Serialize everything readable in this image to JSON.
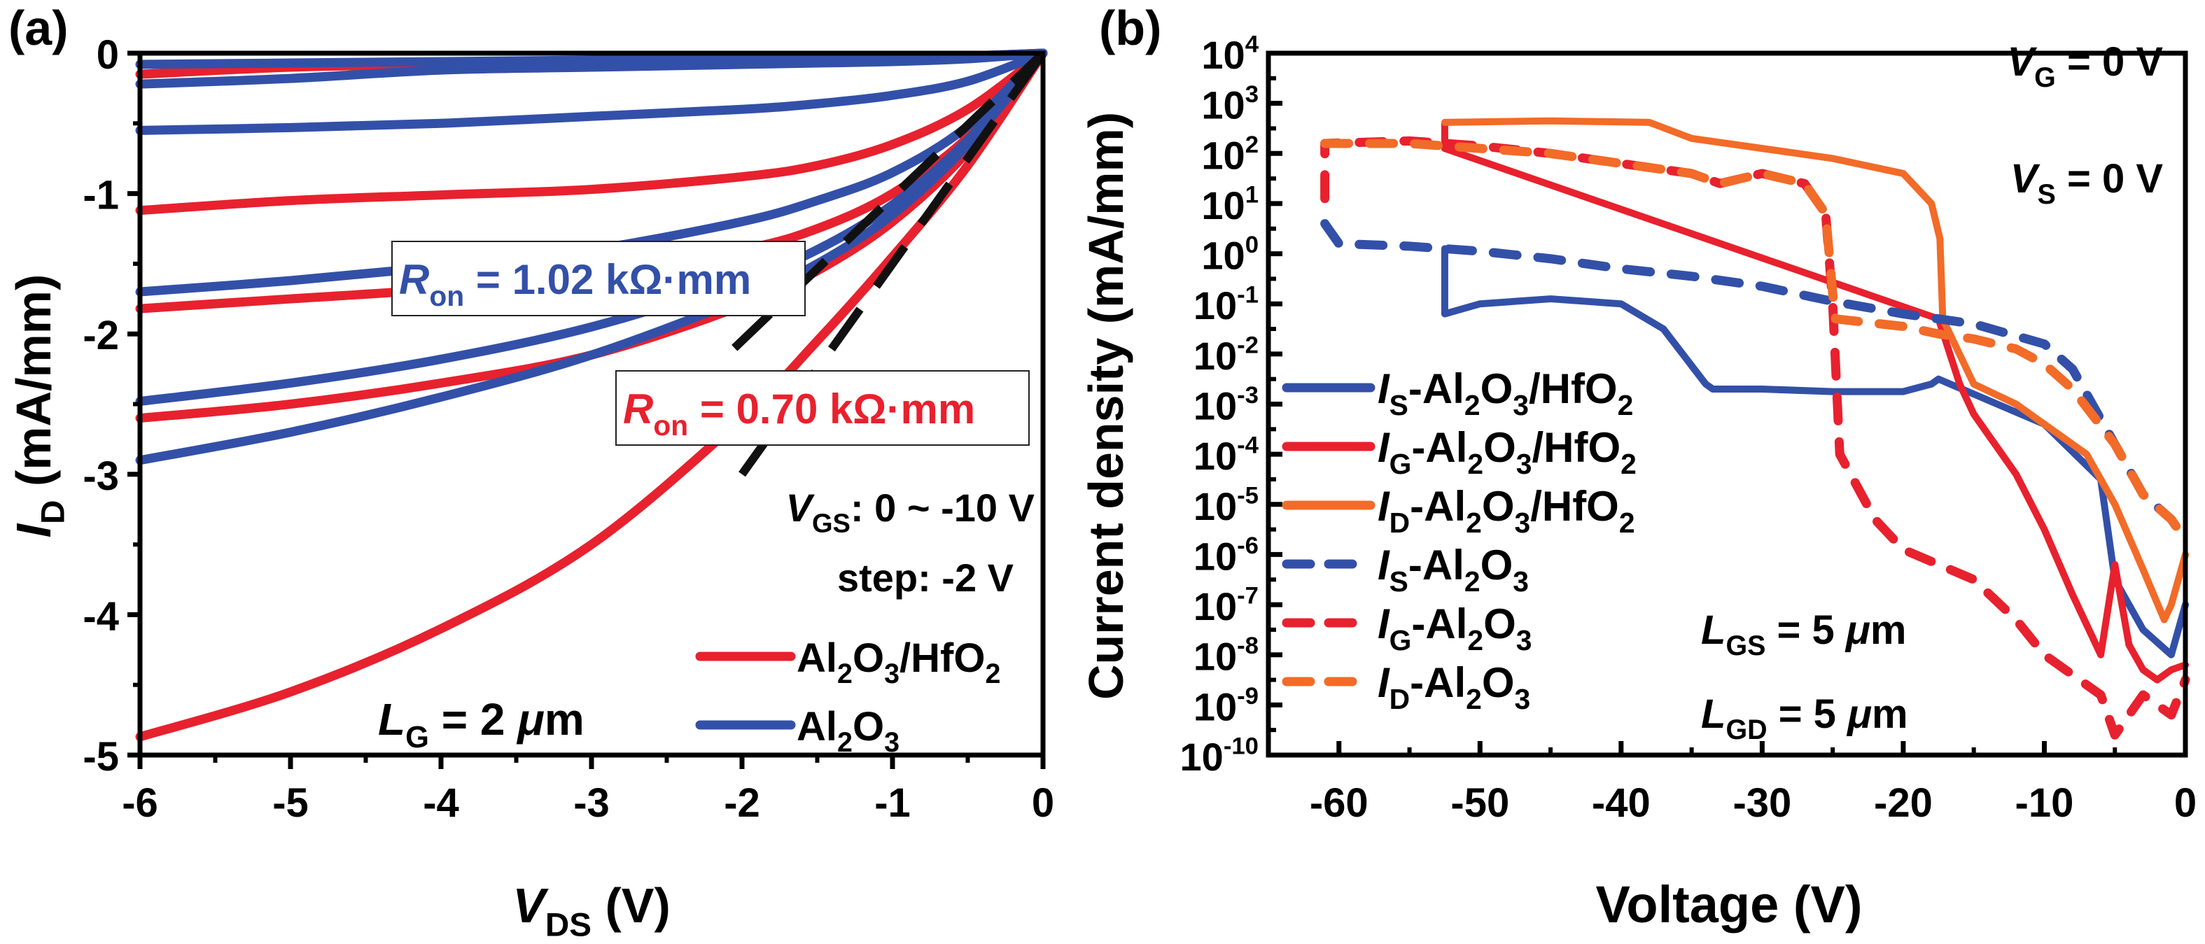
{
  "chart_data": [
    {
      "type": "line",
      "panel_label": "(a)",
      "xlabel": "V_DS (V)",
      "ylabel": "I_D (mA/mm)",
      "xlim": [
        -6,
        0
      ],
      "ylim": [
        -5,
        0
      ],
      "xticks": [
        "-6",
        "-5",
        "-4",
        "-3",
        "-2",
        "-1",
        "0"
      ],
      "yticks": [
        "-5",
        "-4",
        "-3",
        "-2",
        "-1",
        "0"
      ],
      "grid": false,
      "annotations": {
        "ron_blue": "R_on = 1.02 kΩ·mm",
        "ron_red": "R_on = 0.70 kΩ·mm",
        "vgs": "V_GS: 0 ~ -10 V",
        "step": "step: -2 V",
        "lg": "L_G = 2 μm"
      },
      "legend": [
        {
          "name": "Al2O3/HfO2",
          "color": "#e8212e"
        },
        {
          "name": "Al2O3",
          "color": "#3350a8"
        }
      ],
      "x": [
        -6,
        -5,
        -4,
        -3,
        -2,
        -1.5,
        -1,
        -0.5,
        0
      ],
      "series": [
        {
          "name": "Al2O3/HfO2 VGS=-10",
          "color": "#e8212e",
          "values": [
            -4.87,
            -4.55,
            -4.1,
            -3.5,
            -2.6,
            -2.05,
            -1.45,
            -0.8,
            0
          ]
        },
        {
          "name": "Al2O3/HfO2 VGS=-8",
          "color": "#e8212e",
          "values": [
            -2.6,
            -2.5,
            -2.35,
            -2.15,
            -1.8,
            -1.55,
            -1.2,
            -0.7,
            0
          ]
        },
        {
          "name": "Al2O3/HfO2 VGS=-6",
          "color": "#e8212e",
          "values": [
            -1.82,
            -1.75,
            -1.68,
            -1.58,
            -1.4,
            -1.25,
            -1.0,
            -0.6,
            0
          ]
        },
        {
          "name": "Al2O3/HfO2 VGS=-4",
          "color": "#e8212e",
          "values": [
            -1.12,
            -1.05,
            -1.01,
            -0.97,
            -0.88,
            -0.8,
            -0.65,
            -0.4,
            0
          ]
        },
        {
          "name": "Al2O3/HfO2 VGS=-2",
          "color": "#e8212e",
          "values": [
            -0.15,
            -0.1,
            -0.08,
            -0.06,
            -0.05,
            -0.04,
            -0.03,
            -0.02,
            0
          ]
        },
        {
          "name": "Al2O3 VGS=-10",
          "color": "#3350a8",
          "values": [
            -2.9,
            -2.7,
            -2.45,
            -2.15,
            -1.75,
            -1.5,
            -1.15,
            -0.65,
            0
          ]
        },
        {
          "name": "Al2O3 VGS=-8",
          "color": "#3350a8",
          "values": [
            -2.48,
            -2.35,
            -2.18,
            -1.95,
            -1.62,
            -1.4,
            -1.08,
            -0.62,
            0
          ]
        },
        {
          "name": "Al2O3 VGS=-6",
          "color": "#3350a8",
          "values": [
            -1.7,
            -1.62,
            -1.52,
            -1.4,
            -1.2,
            -1.05,
            -0.85,
            -0.52,
            0
          ]
        },
        {
          "name": "Al2O3 VGS=-4",
          "color": "#3350a8",
          "values": [
            -0.55,
            -0.53,
            -0.5,
            -0.45,
            -0.4,
            -0.36,
            -0.3,
            -0.2,
            0
          ]
        },
        {
          "name": "Al2O3 VGS=-2",
          "color": "#3350a8",
          "values": [
            -0.22,
            -0.18,
            -0.12,
            -0.1,
            -0.08,
            -0.07,
            -0.06,
            -0.04,
            0
          ]
        },
        {
          "name": "Al2O3 VGS=0",
          "color": "#3350a8",
          "values": [
            -0.08,
            -0.07,
            -0.06,
            -0.05,
            -0.04,
            -0.04,
            -0.03,
            -0.02,
            0
          ]
        }
      ],
      "fit_lines": [
        {
          "name": "R_on fit 1.02",
          "color": "#111111",
          "points": [
            [
              -2.05,
              -2.1
            ],
            [
              0,
              0
            ]
          ]
        },
        {
          "name": "R_on fit 0.70",
          "color": "#111111",
          "points": [
            [
              -2.0,
              -3.0
            ],
            [
              0,
              0
            ]
          ]
        }
      ]
    },
    {
      "type": "line",
      "panel_label": "(b)",
      "xlabel": "Voltage (V)",
      "ylabel": "Current density (mA/mm)",
      "xlim": [
        -65,
        0
      ],
      "ylim_log10": [
        -10,
        4
      ],
      "yscale": "log",
      "xticks": [
        "-60",
        "-50",
        "-40",
        "-30",
        "-20",
        "-10",
        "0"
      ],
      "yticks": [
        "10^4",
        "10^3",
        "10^2",
        "10^1",
        "10^0",
        "10^-1",
        "10^-2",
        "10^-3",
        "10^-4",
        "10^-5",
        "10^-6",
        "10^-7",
        "10^-8",
        "10^-9",
        "10^-10"
      ],
      "grid": false,
      "annotations": {
        "vg": "V_G = 0 V",
        "vs": "V_S = 0 V",
        "lgs": "L_GS = 5 μm",
        "lgd": "L_GD = 5 μm"
      },
      "legend_position": "left",
      "series": [
        {
          "name": "I_S-Al2O3/HfO2",
          "color": "#3350a8",
          "dash": false,
          "x": [
            -52.5,
            -52.5,
            -50,
            -45,
            -40,
            -37,
            -34,
            -33.5,
            -30,
            -25,
            -20,
            -18,
            -17.5,
            -15,
            -10,
            -6,
            -5,
            -3,
            -1,
            0
          ],
          "log10": [
            0.1,
            -1.2,
            -1.0,
            -0.9,
            -1.0,
            -1.5,
            -2.6,
            -2.7,
            -2.7,
            -2.75,
            -2.75,
            -2.6,
            -2.5,
            -2.8,
            -3.4,
            -4.5,
            -6.5,
            -7.5,
            -8.0,
            -7.0
          ]
        },
        {
          "name": "I_G-Al2O3/HfO2",
          "color": "#e8212e",
          "dash": false,
          "x": [
            -52.5,
            -52.5,
            -17.5,
            -16,
            -15,
            -12,
            -10,
            -8,
            -6,
            -5,
            -4,
            -3,
            -2,
            -1,
            0
          ],
          "log10": [
            2.6,
            2.1,
            -1.3,
            -2.6,
            -3.2,
            -4.4,
            -5.5,
            -6.8,
            -8.0,
            -6.2,
            -7.8,
            -8.3,
            -8.5,
            -8.3,
            -8.2
          ]
        },
        {
          "name": "I_D-Al2O3/HfO2",
          "color": "#f26b28",
          "dash": false,
          "x": [
            -52.5,
            -45,
            -38,
            -35,
            -30,
            -25,
            -20,
            -18,
            -17.4,
            -17.2,
            -15,
            -12,
            -10,
            -7,
            -5,
            -3,
            -1.5,
            -1,
            0
          ],
          "log10": [
            2.62,
            2.65,
            2.62,
            2.3,
            2.1,
            1.9,
            1.6,
            1.0,
            0.3,
            -1.3,
            -2.6,
            -3.0,
            -3.4,
            -4.0,
            -5.0,
            -6.3,
            -7.3,
            -7.0,
            -6.0
          ]
        },
        {
          "name": "I_S-Al2O3",
          "color": "#3350a8",
          "dash": true,
          "x": [
            -61,
            -60,
            -55,
            -50,
            -45,
            -40,
            -35,
            -30,
            -25,
            -22,
            -20,
            -15,
            -10,
            -8,
            -5,
            -3,
            -1,
            0
          ],
          "log10": [
            0.6,
            0.2,
            0.15,
            0.05,
            -0.1,
            -0.3,
            -0.45,
            -0.65,
            -0.95,
            -1.1,
            -1.2,
            -1.4,
            -1.8,
            -2.3,
            -3.8,
            -4.8,
            -5.3,
            -5.7
          ]
        },
        {
          "name": "I_G-Al2O3",
          "color": "#e8212e",
          "dash": true,
          "x": [
            -61,
            -61,
            -55,
            -50,
            -45,
            -40,
            -35,
            -33,
            -30,
            -27,
            -25.5,
            -25,
            -24.5,
            -22,
            -20,
            -15,
            -12,
            -10,
            -8,
            -6,
            -5,
            -3,
            -1,
            0
          ],
          "log10": [
            1.1,
            2.2,
            2.25,
            2.15,
            2.0,
            1.8,
            1.6,
            1.4,
            1.6,
            1.4,
            0.8,
            -1.0,
            -4.0,
            -5.3,
            -5.9,
            -6.5,
            -7.3,
            -8.0,
            -8.4,
            -8.8,
            -9.6,
            -8.8,
            -9.2,
            -8.5
          ]
        },
        {
          "name": "I_D-Al2O3",
          "color": "#f26b28",
          "dash": true,
          "x": [
            -61,
            -55,
            -50,
            -45,
            -40,
            -35,
            -33,
            -30,
            -27,
            -25.5,
            -25,
            -24.8,
            -20,
            -17.5,
            -15,
            -12,
            -10,
            -8,
            -5,
            -3,
            -1,
            0
          ],
          "log10": [
            2.2,
            2.2,
            2.1,
            2.0,
            1.8,
            1.6,
            1.4,
            1.6,
            1.4,
            0.8,
            -0.8,
            -1.3,
            -1.45,
            -1.6,
            -1.7,
            -1.9,
            -2.2,
            -2.7,
            -3.8,
            -4.8,
            -5.3,
            -5.7
          ]
        }
      ]
    }
  ],
  "legend_b": [
    {
      "main": "I",
      "sub": "S",
      "rest": "-Al",
      "color": "#3350a8",
      "dash": false
    },
    {
      "main": "I",
      "sub": "G",
      "rest": "-Al",
      "color": "#e8212e",
      "dash": false
    },
    {
      "main": "I",
      "sub": "D",
      "rest": "-Al",
      "color": "#f26b28",
      "dash": false
    },
    {
      "main": "I",
      "sub": "S",
      "rest": "-Al",
      "color": "#3350a8",
      "dash": true
    },
    {
      "main": "I",
      "sub": "G",
      "rest": "-Al",
      "color": "#e8212e",
      "dash": true
    },
    {
      "main": "I",
      "sub": "D",
      "rest": "-Al",
      "color": "#f26b28",
      "dash": true
    }
  ]
}
